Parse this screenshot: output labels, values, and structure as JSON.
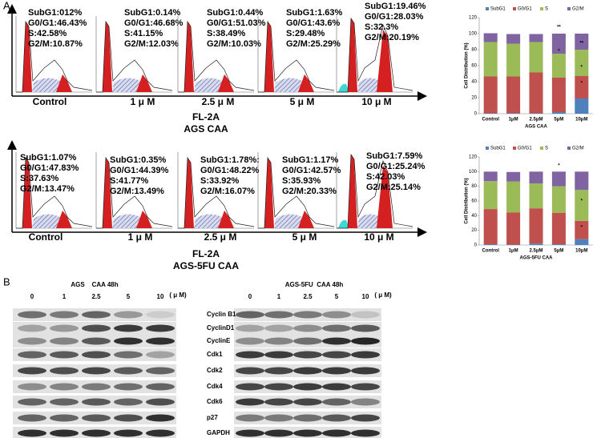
{
  "panel_labels": [
    "A",
    "B"
  ],
  "flow": [
    {
      "stats": [
        [
          "SubG1:012%",
          "G0/G1:46.43%",
          "S:42.58%",
          "G2/M:10.87%"
        ],
        [
          "SubG1:0.14%",
          "G0/G1:46.68%",
          "S:41.15%",
          "G2/M:12.03%"
        ],
        [
          "SubG1:0.44%",
          "G0/G1:51.03%",
          "S:38.49%",
          "G2/M:10.03%"
        ],
        [
          "SubG1:1.63%",
          "G0/G1:43.6%",
          "S:29.48%",
          "G2/M:25.29%"
        ],
        [
          "SubG1:19.46%",
          "G0/G1:28.03%",
          "S:32.3%",
          "G2/M:20.19%"
        ]
      ],
      "doses": [
        "Control",
        "1 μ M",
        "2.5 μ M",
        "5 μ M",
        "10 μ M"
      ],
      "axis_label": "FL-2A",
      "cell_line": "AGS CAA"
    },
    {
      "stats": [
        [
          "SubG1:1.07%",
          "G0/G1:47.83%",
          "S:37.63%",
          "G2/M:13.47%"
        ],
        [
          "SubG1:0.35%",
          "G0/G1:44.39%",
          "S:41.77%",
          "G2/M:13.49%"
        ],
        [
          "SubG1:1.78%:",
          "G0/G1:48.22%",
          "S:33.92%",
          "G2/M:16.07%"
        ],
        [
          "SubG1:1.17%",
          "G0/G1:42.57%",
          "S:35.93%",
          "G2/M:20.33%"
        ],
        [
          "SubG1:7.59%",
          "G0/G1:25.24%",
          "S:42.03%",
          "G2/M:25.14%"
        ]
      ],
      "doses": [
        "Control",
        "1 μ M",
        "2.5 μ M",
        "5 μ M",
        "10 μ M"
      ],
      "axis_label": "FL-2A",
      "cell_line": "AGS-5FU CAA"
    }
  ],
  "chart_data": [
    {
      "type": "stacked_bar",
      "xlabel": "AGS CAA",
      "ylabel": "Cell Distribution (%)",
      "categories": [
        "Control",
        "1μM",
        "2.5μM",
        "5μM",
        "10μM"
      ],
      "series": [
        {
          "name": "SubG1",
          "color": "#4f81bd",
          "values": [
            0.5,
            0.5,
            0.5,
            2,
            19
          ]
        },
        {
          "name": "G0/G1",
          "color": "#c0504d",
          "values": [
            46,
            46,
            51,
            43,
            28
          ]
        },
        {
          "name": "S",
          "color": "#9bbb59",
          "values": [
            43,
            41,
            38,
            30,
            33
          ]
        },
        {
          "name": "G2/M",
          "color": "#8064a2",
          "values": [
            11,
            12,
            10,
            25,
            20
          ]
        }
      ],
      "ylim": [
        0,
        120
      ],
      "yticks": [
        0,
        20,
        40,
        60,
        80,
        100,
        120
      ],
      "annotations": [
        "**",
        "*",
        "**",
        "*",
        "*"
      ]
    },
    {
      "type": "stacked_bar",
      "xlabel": "AGS-5FU CAA",
      "ylabel": "Cell Distribution (%)",
      "categories": [
        "Control",
        "1μM",
        "2.5μM",
        "5μM",
        "10μM"
      ],
      "series": [
        {
          "name": "SubG1",
          "color": "#4f81bd",
          "values": [
            1,
            0.5,
            2,
            1,
            8
          ]
        },
        {
          "name": "G0/G1",
          "color": "#c0504d",
          "values": [
            48,
            44,
            48,
            43,
            25
          ]
        },
        {
          "name": "S",
          "color": "#9bbb59",
          "values": [
            38,
            42,
            34,
            36,
            42
          ]
        },
        {
          "name": "G2/M",
          "color": "#8064a2",
          "values": [
            13,
            13,
            16,
            20,
            25
          ]
        }
      ],
      "ylim": [
        0,
        120
      ],
      "yticks": [
        0,
        20,
        40,
        60,
        80,
        100,
        120
      ],
      "annotations": [
        "*",
        "*",
        "*"
      ]
    }
  ],
  "blots": [
    {
      "header": "AGS    CAA 48h",
      "doses": [
        "0",
        "1",
        "2.5",
        "5",
        "10"
      ],
      "unit": "( μ M)"
    },
    {
      "header": "AGS-5FU  CAA 48h",
      "doses": [
        "0",
        "1",
        "2.5",
        "5",
        "10"
      ],
      "unit": "( μ M)"
    }
  ],
  "proteins": [
    "Cyclin B1",
    "CyclinD1",
    "CyclinE",
    "Cdk1",
    "Cdk2",
    "Cdk4",
    "Cdk6",
    "p27",
    "GAPDH"
  ]
}
